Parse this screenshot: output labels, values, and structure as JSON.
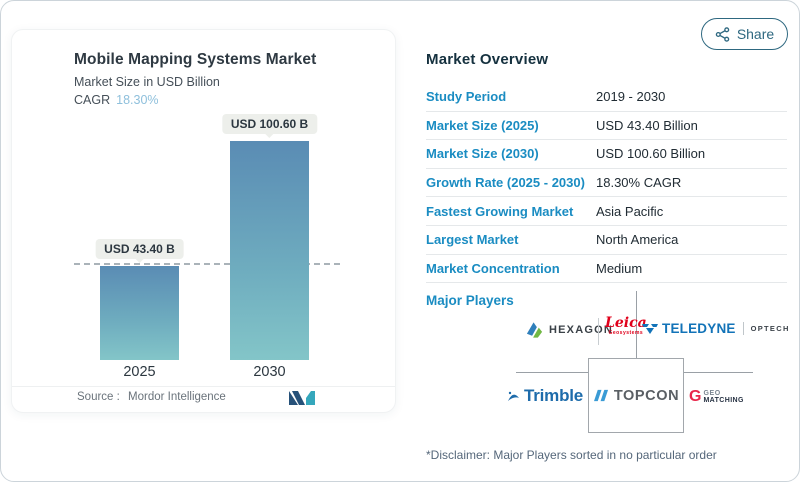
{
  "share": {
    "label": "Share"
  },
  "chart_panel": {
    "title": "Mobile Mapping Systems Market",
    "subtitle": "Market Size in USD Billion",
    "cagr_label": "CAGR",
    "cagr_value": "18.30%",
    "source_label": "Source :",
    "source_value": "Mordor Intelligence"
  },
  "chart_data": {
    "type": "bar",
    "title": "Mobile Mapping Systems Market",
    "ylabel": "Market Size in USD Billion",
    "unit": "USD Billion",
    "categories": [
      "2025",
      "2030"
    ],
    "values": [
      43.4,
      100.6
    ],
    "value_labels": [
      "USD 43.40 B",
      "USD 100.60 B"
    ],
    "reference_line_at": 43.4,
    "cagr_percent": 18.3,
    "bar_gradient": [
      "#5a8cb4",
      "#83c5c8"
    ],
    "grid": false,
    "legend": false
  },
  "overview": {
    "heading": "Market Overview",
    "rows": [
      {
        "label": "Study Period",
        "value": "2019 - 2030"
      },
      {
        "label": "Market Size (2025)",
        "value": "USD 43.40 Billion"
      },
      {
        "label": "Market Size (2030)",
        "value": "USD 100.60 Billion"
      },
      {
        "label": "Growth Rate (2025 - 2030)",
        "value": "18.30% CAGR"
      },
      {
        "label": "Fastest Growing Market",
        "value": "Asia Pacific"
      },
      {
        "label": "Largest Market",
        "value": "North America"
      },
      {
        "label": "Market Concentration",
        "value": "Medium"
      }
    ],
    "major_players_label": "Major Players",
    "players": {
      "hexagon": {
        "text": "HEXAGON"
      },
      "leica": {
        "line1": "Leica",
        "line2": "Geosystems"
      },
      "teledyne": {
        "text": "TELEDYNE",
        "sub": "OPTECH"
      },
      "trimble": {
        "text": "Trimble"
      },
      "topcon": {
        "text": "TOPCON"
      },
      "geomatching": {
        "g": "G",
        "line1": "GEO",
        "line2": "MATCHING"
      }
    },
    "disclaimer": "*Disclaimer: Major Players sorted in no particular order"
  },
  "colors": {
    "accent_blue": "#1a8cc2",
    "heading_navy": "#15313f",
    "cagr_light_blue": "#8fc0dc",
    "share_teal": "#2e6880",
    "bar_top": "#5a8cb4",
    "bar_bottom": "#83c5c8"
  }
}
